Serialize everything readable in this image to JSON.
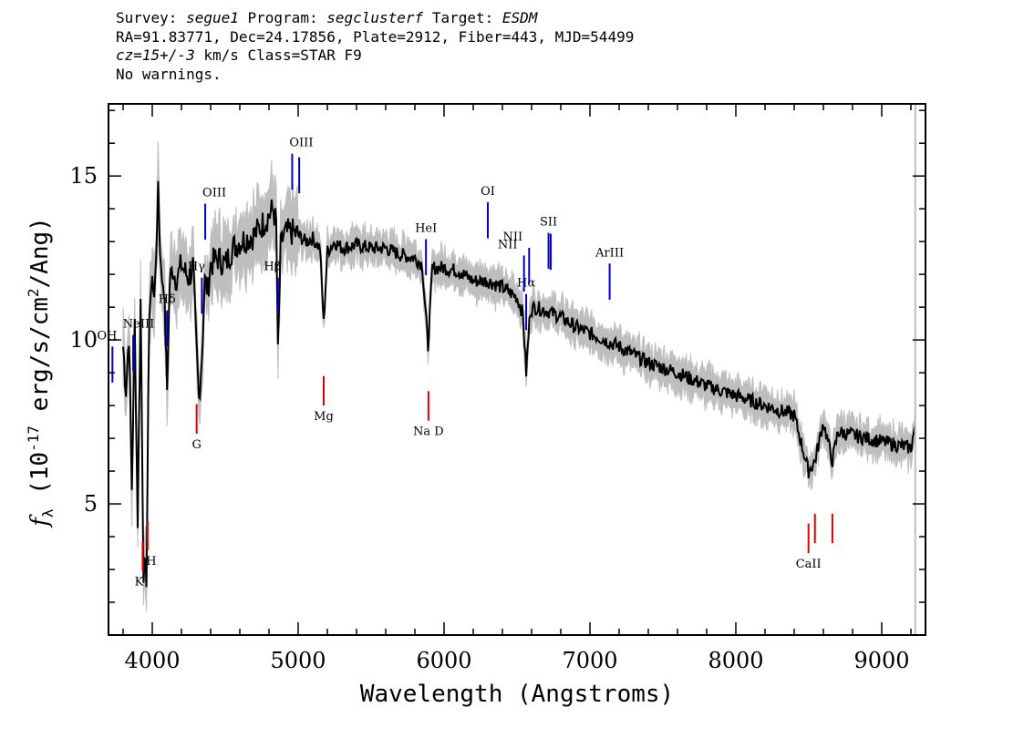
{
  "header": {
    "survey_label": "Survey:",
    "survey": "segue1",
    "program_label": "Program:",
    "program": "segclusterf",
    "target_label": "Target:",
    "target": "ESDM",
    "line2": "RA=91.83771, Dec=24.17856, Plate=2912, Fiber=443, MJD=54499",
    "cz_value": "cz=15+/-3",
    "cz_rest": " km/s Class=STAR F9",
    "line4": "No warnings."
  },
  "chart_data": {
    "type": "line",
    "xlabel": "Wavelength (Angstroms)",
    "ylabel": "f_λ (10^-17 erg/s/cm^2/Ang)",
    "xlim": [
      3700,
      9300
    ],
    "ylim": [
      1,
      17.2
    ],
    "xticks": [
      4000,
      5000,
      6000,
      7000,
      8000,
      9000
    ],
    "yticks": [
      5,
      10,
      15
    ],
    "grid": false,
    "colors": {
      "flux": "#000000",
      "error_band": "#bebebe",
      "emission": "#0000cc",
      "absorption": "#dd0000"
    },
    "series": [
      {
        "x": [
          3800,
          3820,
          3840,
          3860,
          3880,
          3900,
          3920,
          3940,
          3960,
          3980,
          4000,
          4020,
          4040,
          4060,
          4080,
          4101,
          4120,
          4140,
          4160,
          4180,
          4200,
          4220,
          4250,
          4280,
          4300,
          4320,
          4340,
          4360,
          4380,
          4400,
          4450,
          4500,
          4550,
          4600,
          4650,
          4700,
          4750,
          4800,
          4830,
          4850,
          4861,
          4880,
          4900,
          4950,
          5000,
          5050,
          5100,
          5150,
          5175,
          5200,
          5250,
          5300,
          5400,
          5500,
          5600,
          5700,
          5800,
          5850,
          5890,
          5920,
          6000,
          6100,
          6200,
          6300,
          6400,
          6500,
          6540,
          6563,
          6590,
          6620,
          6700,
          6800,
          6900,
          7000,
          7200,
          7400,
          7600,
          7800,
          8000,
          8200,
          8400,
          8498,
          8542,
          8600,
          8662,
          8700,
          8800,
          9000,
          9200,
          9230
        ],
        "y": [
          9.8,
          8.5,
          10.2,
          5.5,
          10.5,
          4.5,
          11.2,
          3.0,
          2.8,
          11.0,
          11.8,
          11.5,
          14.8,
          12.0,
          11.7,
          8.5,
          11.8,
          12.2,
          11.9,
          12.0,
          12.3,
          12.1,
          11.9,
          12.2,
          10.0,
          8.2,
          9.5,
          11.8,
          11.5,
          12.3,
          12.5,
          12.3,
          12.8,
          13.0,
          13.1,
          13.2,
          13.5,
          13.8,
          14.0,
          13.5,
          9.5,
          12.8,
          13.2,
          13.3,
          13.2,
          13.0,
          13.1,
          12.8,
          10.5,
          12.7,
          13.0,
          12.8,
          12.9,
          12.8,
          12.8,
          12.6,
          12.5,
          12.3,
          9.8,
          12.2,
          12.2,
          12.1,
          11.8,
          11.8,
          11.6,
          11.3,
          10.8,
          9.0,
          10.9,
          11.0,
          10.9,
          10.7,
          10.4,
          10.2,
          9.8,
          9.3,
          9.0,
          8.6,
          8.3,
          8.0,
          7.7,
          6.0,
          6.3,
          7.5,
          6.3,
          7.2,
          7.1,
          6.9,
          6.7,
          7.4
        ]
      }
    ],
    "lines": [
      {
        "name": "OH",
        "wave": 3727,
        "kind": "emission"
      },
      {
        "name": "NeIII",
        "wave": 3869,
        "kind": "emission"
      },
      {
        "name": "Hδ",
        "wave": 4101,
        "kind": "emission"
      },
      {
        "name": "Hγ",
        "wave": 4340,
        "kind": "emission"
      },
      {
        "name": "OIII",
        "wave": 4363,
        "kind": "emission"
      },
      {
        "name": "Hβ",
        "wave": 4861,
        "kind": "emission"
      },
      {
        "name": "OIII",
        "wave": 4959,
        "kind": "emission"
      },
      {
        "name": "",
        "wave": 5007,
        "kind": "emission"
      },
      {
        "name": "HeI",
        "wave": 5876,
        "kind": "emission"
      },
      {
        "name": "OI",
        "wave": 6300,
        "kind": "emission"
      },
      {
        "name": "NII",
        "wave": 6548,
        "kind": "emission"
      },
      {
        "name": "Hα",
        "wave": 6563,
        "kind": "emission"
      },
      {
        "name": "NII",
        "wave": 6583,
        "kind": "emission"
      },
      {
        "name": "SII",
        "wave": 6716,
        "kind": "emission"
      },
      {
        "name": "",
        "wave": 6731,
        "kind": "emission"
      },
      {
        "name": "ArIII",
        "wave": 7135,
        "kind": "emission"
      },
      {
        "name": "K",
        "wave": 3934,
        "kind": "absorption"
      },
      {
        "name": "H",
        "wave": 3968,
        "kind": "absorption"
      },
      {
        "name": "G",
        "wave": 4304,
        "kind": "absorption"
      },
      {
        "name": "Mg",
        "wave": 5175,
        "kind": "absorption"
      },
      {
        "name": "Na D",
        "wave": 5893,
        "kind": "absorption"
      },
      {
        "name": "CaII",
        "wave": 8498,
        "kind": "absorption"
      },
      {
        "name": "",
        "wave": 8542,
        "kind": "absorption"
      },
      {
        "name": "",
        "wave": 8662,
        "kind": "absorption"
      }
    ]
  }
}
